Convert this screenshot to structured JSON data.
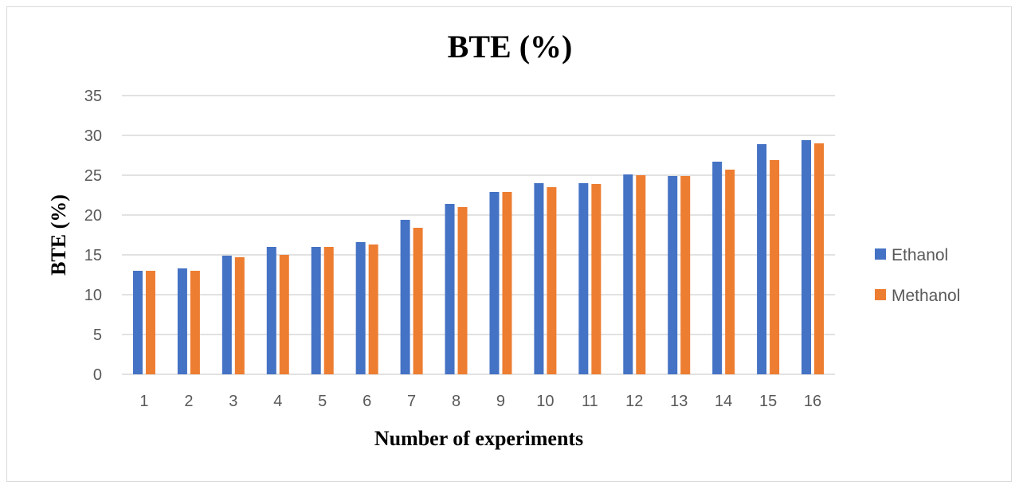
{
  "chart_data": {
    "type": "bar",
    "title": "BTE (%)",
    "xlabel": "Number of experiments",
    "ylabel": "BTE (%)",
    "ylim": [
      0,
      35
    ],
    "yticks": [
      0,
      5,
      10,
      15,
      20,
      25,
      30,
      35
    ],
    "grid": true,
    "legend_position": "right",
    "categories": [
      "1",
      "2",
      "3",
      "4",
      "5",
      "6",
      "7",
      "8",
      "9",
      "10",
      "11",
      "12",
      "13",
      "14",
      "15",
      "16"
    ],
    "series": [
      {
        "name": "Ethanol",
        "color": "#4472C4",
        "values": [
          13.0,
          13.3,
          14.9,
          16.0,
          16.0,
          16.6,
          19.4,
          21.4,
          22.9,
          24.0,
          24.0,
          25.1,
          24.9,
          26.7,
          28.9,
          29.4
        ]
      },
      {
        "name": "Methanol",
        "color": "#ED7D31",
        "values": [
          13.0,
          13.0,
          14.7,
          15.0,
          16.0,
          16.3,
          18.4,
          21.0,
          22.9,
          23.5,
          23.9,
          25.0,
          24.9,
          25.7,
          26.9,
          29.0
        ]
      }
    ]
  }
}
